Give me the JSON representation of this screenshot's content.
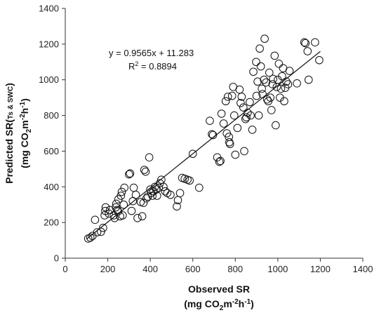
{
  "chart_data": {
    "type": "scatter",
    "xlabel": "Observed SR",
    "xlabel_unit": {
      "pre": "(mg CO",
      "sub": "2",
      "mid": "m",
      "sup1": "-2",
      "mid2": "h",
      "sup2": "-1",
      "post": ")"
    },
    "ylabel": {
      "pre": "Predicted SR(",
      "small": "Ts & SWC",
      "post": ")"
    },
    "ylabel_unit": {
      "pre": "(mg CO",
      "sub": "2",
      "mid": "m",
      "sup1": "-2",
      "mid2": "h",
      "sup2": "-1",
      "post": ")"
    },
    "xlim": [
      0,
      1400
    ],
    "ylim": [
      0,
      1400
    ],
    "xticks": [
      0,
      200,
      400,
      600,
      800,
      1000,
      1200,
      1400
    ],
    "yticks": [
      0,
      200,
      400,
      600,
      800,
      1000,
      1200,
      1400
    ],
    "grid": false,
    "fit": {
      "slope": 0.9565,
      "intercept": 11.283,
      "x_range": [
        100,
        1200
      ]
    },
    "annotations": {
      "equation": "y = 0.9565x + 11.283",
      "r2_label": "R",
      "r2_sup": "2",
      "r2_value": " = 0.8894"
    },
    "points": [
      [
        108,
        110
      ],
      [
        118,
        115
      ],
      [
        128,
        125
      ],
      [
        140,
        215
      ],
      [
        150,
        145
      ],
      [
        168,
        148
      ],
      [
        178,
        170
      ],
      [
        185,
        240
      ],
      [
        188,
        265
      ],
      [
        190,
        285
      ],
      [
        205,
        250
      ],
      [
        210,
        270
      ],
      [
        228,
        240
      ],
      [
        232,
        225
      ],
      [
        238,
        285
      ],
      [
        240,
        305
      ],
      [
        245,
        270
      ],
      [
        248,
        262
      ],
      [
        250,
        330
      ],
      [
        258,
        235
      ],
      [
        262,
        350
      ],
      [
        266,
        372
      ],
      [
        270,
        240
      ],
      [
        275,
        300
      ],
      [
        278,
        395
      ],
      [
        300,
        470
      ],
      [
        305,
        475
      ],
      [
        312,
        265
      ],
      [
        318,
        320
      ],
      [
        322,
        395
      ],
      [
        332,
        355
      ],
      [
        340,
        225
      ],
      [
        355,
        315
      ],
      [
        362,
        235
      ],
      [
        368,
        310
      ],
      [
        372,
        495
      ],
      [
        378,
        485
      ],
      [
        382,
        335
      ],
      [
        388,
        345
      ],
      [
        395,
        565
      ],
      [
        400,
        385
      ],
      [
        405,
        365
      ],
      [
        410,
        350
      ],
      [
        415,
        375
      ],
      [
        422,
        400
      ],
      [
        428,
        385
      ],
      [
        432,
        350
      ],
      [
        440,
        395
      ],
      [
        445,
        420
      ],
      [
        452,
        440
      ],
      [
        462,
        400
      ],
      [
        470,
        375
      ],
      [
        480,
        365
      ],
      [
        495,
        355
      ],
      [
        525,
        290
      ],
      [
        530,
        325
      ],
      [
        540,
        365
      ],
      [
        550,
        450
      ],
      [
        562,
        445
      ],
      [
        575,
        440
      ],
      [
        585,
        435
      ],
      [
        600,
        585
      ],
      [
        630,
        395
      ],
      [
        680,
        770
      ],
      [
        690,
        695
      ],
      [
        695,
        690
      ],
      [
        715,
        565
      ],
      [
        725,
        540
      ],
      [
        730,
        545
      ],
      [
        735,
        810
      ],
      [
        745,
        755
      ],
      [
        755,
        880
      ],
      [
        760,
        700
      ],
      [
        765,
        905
      ],
      [
        770,
        680
      ],
      [
        772,
        650
      ],
      [
        775,
        640
      ],
      [
        785,
        910
      ],
      [
        790,
        960
      ],
      [
        795,
        800
      ],
      [
        800,
        580
      ],
      [
        810,
        730
      ],
      [
        820,
        945
      ],
      [
        825,
        870
      ],
      [
        830,
        905
      ],
      [
        838,
        845
      ],
      [
        842,
        600
      ],
      [
        848,
        780
      ],
      [
        852,
        790
      ],
      [
        858,
        815
      ],
      [
        868,
        875
      ],
      [
        872,
        800
      ],
      [
        880,
        720
      ],
      [
        885,
        1045
      ],
      [
        898,
        1100
      ],
      [
        900,
        910
      ],
      [
        905,
        990
      ],
      [
        910,
        800
      ],
      [
        915,
        1175
      ],
      [
        920,
        1075
      ],
      [
        925,
        950
      ],
      [
        928,
        920
      ],
      [
        935,
        1000
      ],
      [
        938,
        1230
      ],
      [
        945,
        985
      ],
      [
        950,
        890
      ],
      [
        955,
        880
      ],
      [
        960,
        1040
      ],
      [
        965,
        900
      ],
      [
        970,
        830
      ],
      [
        975,
        975
      ],
      [
        978,
        1005
      ],
      [
        985,
        1135
      ],
      [
        990,
        745
      ],
      [
        995,
        960
      ],
      [
        1000,
        1000
      ],
      [
        1005,
        1090
      ],
      [
        1010,
        900
      ],
      [
        1015,
        950
      ],
      [
        1020,
        1020
      ],
      [
        1025,
        1065
      ],
      [
        1030,
        880
      ],
      [
        1035,
        955
      ],
      [
        1040,
        990
      ],
      [
        1048,
        975
      ],
      [
        1055,
        1050
      ],
      [
        1090,
        980
      ],
      [
        1125,
        1210
      ],
      [
        1130,
        1205
      ],
      [
        1140,
        1160
      ],
      [
        1145,
        1000
      ],
      [
        1175,
        1210
      ],
      [
        1195,
        1110
      ]
    ]
  }
}
